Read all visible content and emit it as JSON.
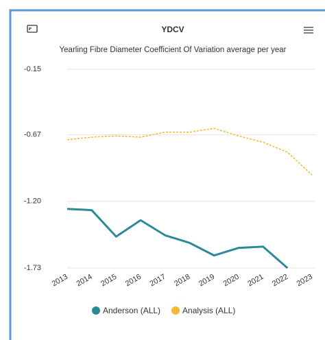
{
  "chart_data": {
    "type": "line",
    "title": "YDCV",
    "subtitle": "Yearling Fibre Diameter Coefficient Of Variation average per year",
    "categories": [
      "2013",
      "2014",
      "2015",
      "2016",
      "2017",
      "2018",
      "2019",
      "2020",
      "2021",
      "2022",
      "2023"
    ],
    "series": [
      {
        "name": "Anderson (ALL)",
        "color": "#2b8a96",
        "dashed": false,
        "values": [
          -1.26,
          -1.27,
          -1.48,
          -1.35,
          -1.47,
          -1.53,
          -1.63,
          -1.57,
          -1.56,
          -1.73,
          null
        ]
      },
      {
        "name": "Analysis (ALL)",
        "color": "#f6b82e",
        "dashed": true,
        "values": [
          -0.71,
          -0.69,
          -0.68,
          -0.69,
          -0.65,
          -0.65,
          -0.62,
          -0.68,
          -0.73,
          -0.81,
          -0.99
        ]
      }
    ],
    "ylim": [
      -1.73,
      -0.15
    ],
    "yticks": [
      -0.15,
      -0.67,
      {
        "value": -1.2,
        "label": "-1.20"
      },
      -1.73
    ],
    "grid": true
  }
}
